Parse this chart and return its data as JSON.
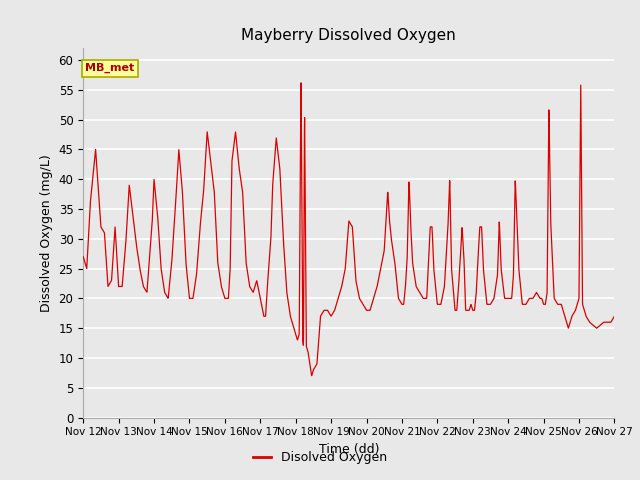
{
  "title": "Mayberry Dissolved Oxygen",
  "xlabel": "Time (dd)",
  "ylabel": "Dissolved Oxygen (mg/L)",
  "legend_label": "Disolved Oxygen",
  "annotation_label": "MB_met",
  "line_color": "#dd0000",
  "bg_color": "#e8e8e8",
  "fig_bg": "#e8e8e8",
  "ylim": [
    0,
    62
  ],
  "xlim_start": 12,
  "xlim_end": 27,
  "xtick_labels": [
    "Nov 12",
    "Nov 13",
    "Nov 14",
    "Nov 15",
    "Nov 16",
    "Nov 17",
    "Nov 18",
    "Nov 19",
    "Nov 20",
    "Nov 21",
    "Nov 22",
    "Nov 23",
    "Nov 24",
    "Nov 25",
    "Nov 26",
    "Nov 27"
  ],
  "xtick_positions": [
    12,
    13,
    14,
    15,
    16,
    17,
    18,
    19,
    20,
    21,
    22,
    23,
    24,
    25,
    26,
    27
  ],
  "ytick_positions": [
    0,
    5,
    10,
    15,
    20,
    25,
    30,
    35,
    40,
    45,
    50,
    55,
    60
  ]
}
